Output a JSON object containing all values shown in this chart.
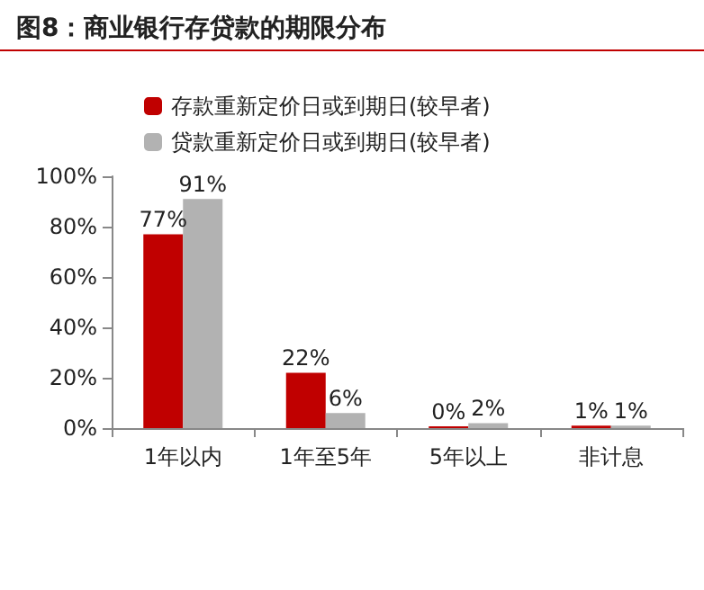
{
  "chart_data": {
    "type": "bar",
    "title": "图8：商业银行存贷款的期限分布",
    "categories": [
      "1年以内",
      "1年至5年",
      "5年以上",
      "非计息"
    ],
    "series": [
      {
        "name": "存款重新定价日或到期日(较早者)",
        "color": "#c00000",
        "values": [
          77,
          22,
          0,
          1
        ],
        "value_labels": [
          "77%",
          "22%",
          "0%",
          "1%"
        ]
      },
      {
        "name": "贷款重新定价日或到期日(较早者)",
        "color": "#b2b2b2",
        "values": [
          91,
          6,
          2,
          1
        ],
        "value_labels": [
          "91%",
          "6%",
          "2%",
          "1%"
        ]
      }
    ],
    "ylim": [
      0,
      100
    ],
    "yticks": [
      {
        "value": 0,
        "label": "0%"
      },
      {
        "value": 20,
        "label": "20%"
      },
      {
        "value": 40,
        "label": "40%"
      },
      {
        "value": 60,
        "label": "60%"
      },
      {
        "value": 80,
        "label": "80%"
      },
      {
        "value": 100,
        "label": "100%"
      }
    ],
    "grid": false,
    "legend": "top left"
  }
}
